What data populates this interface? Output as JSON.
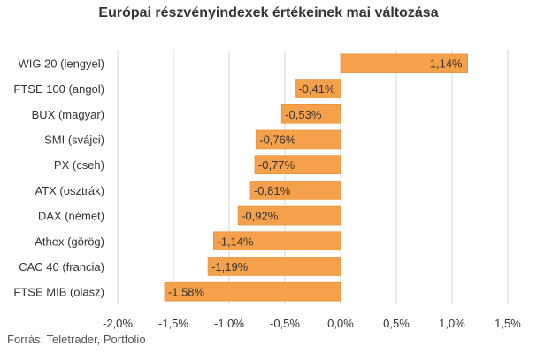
{
  "colors": {
    "bar": "#f5a04a",
    "bar_stroke": "#e38a2e",
    "grid": "#d4d4d4",
    "text": "#333333"
  },
  "source": "Forrás: Teletrader, Portfolio",
  "chart_data": {
    "type": "bar",
    "orientation": "horizontal",
    "title": "Európai részvényindexek értékeinek mai változása",
    "categories": [
      "WIG 20 (lengyel)",
      "FTSE 100 (angol)",
      "BUX (magyar)",
      "SMI (svájci)",
      "PX (cseh)",
      "ATX (osztrák)",
      "DAX (német)",
      "Athex (görög)",
      "CAC 40 (francia)",
      "FTSE MIB (olasz)"
    ],
    "values": [
      1.14,
      -0.41,
      -0.53,
      -0.76,
      -0.77,
      -0.81,
      -0.92,
      -1.14,
      -1.19,
      -1.58
    ],
    "value_labels": [
      "1,14%",
      "-0,41%",
      "-0,53%",
      "-0,76%",
      "-0,77%",
      "-0,81%",
      "-0,92%",
      "-1,14%",
      "-1,19%",
      "-1,58%"
    ],
    "xlim": [
      -2.0,
      1.5
    ],
    "ticks": [
      -2.0,
      -1.5,
      -1.0,
      -0.5,
      0.0,
      0.5,
      1.0,
      1.5
    ],
    "tick_labels": [
      "-2,0%",
      "-1,5%",
      "-1,0%",
      "-0,5%",
      "0,0%",
      "0,5%",
      "1,0%",
      "1,5%"
    ],
    "grid": "vertical",
    "legend": "none"
  }
}
